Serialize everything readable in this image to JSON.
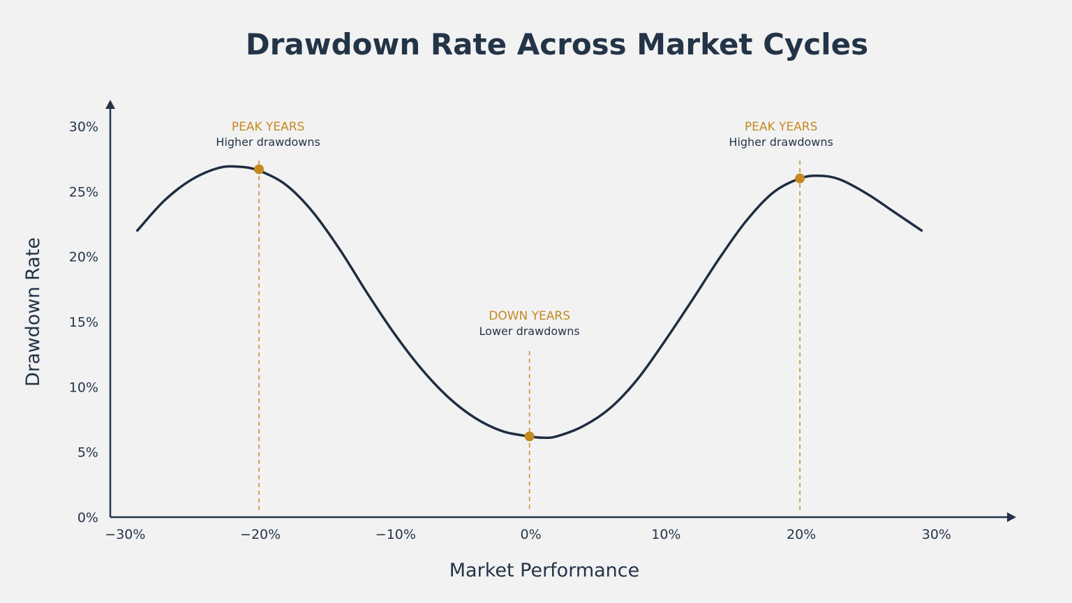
{
  "chart_data": {
    "type": "line",
    "title": "Drawdown Rate Across Market Cycles",
    "xlabel": "Market Performance",
    "ylabel": "Drawdown Rate",
    "xlim": [
      -31,
      33
    ],
    "ylim": [
      0,
      30
    ],
    "x_ticks": [
      -30,
      -20,
      -10,
      0,
      10,
      20,
      30
    ],
    "x_tick_labels": [
      "−30%",
      "−20%",
      "−10%",
      "0%",
      "10%",
      "20%",
      "30%"
    ],
    "y_ticks": [
      0,
      5,
      10,
      15,
      20,
      25,
      30
    ],
    "y_tick_labels": [
      "0%",
      "5%",
      "10%",
      "15%",
      "20%",
      "25%",
      "30%"
    ],
    "grid": false,
    "series": [
      {
        "x": [
          -29,
          -27,
          -25,
          -23,
          -21.5,
          -20,
          -18,
          -16,
          -14,
          -12,
          -10,
          -8,
          -6,
          -4,
          -2,
          0,
          1,
          2,
          4,
          6,
          8,
          10,
          12,
          14,
          16,
          18,
          20,
          21.5,
          23,
          25,
          27,
          29
        ],
        "y": [
          22.0,
          24.3,
          25.9,
          26.8,
          26.9,
          26.6,
          25.5,
          23.4,
          20.5,
          17.2,
          14.1,
          11.4,
          9.2,
          7.6,
          6.6,
          6.2,
          6.1,
          6.2,
          7.0,
          8.4,
          10.6,
          13.5,
          16.6,
          19.8,
          22.7,
          24.9,
          26.0,
          26.2,
          25.9,
          24.8,
          23.4,
          22.0
        ]
      }
    ],
    "annotations": [
      {
        "x": -20,
        "y": 26.7,
        "label": "PEAK YEARS",
        "sublabel": "Higher drawdowns"
      },
      {
        "x": 0,
        "y": 6.2,
        "label": "DOWN YEARS",
        "sublabel": "Lower drawdowns"
      },
      {
        "x": 20,
        "y": 26.0,
        "label": "PEAK YEARS",
        "sublabel": "Higher drawdowns"
      }
    ],
    "colors": {
      "line": "#1f2d40",
      "accent": "#c48a1f",
      "axis": "#243447"
    }
  }
}
